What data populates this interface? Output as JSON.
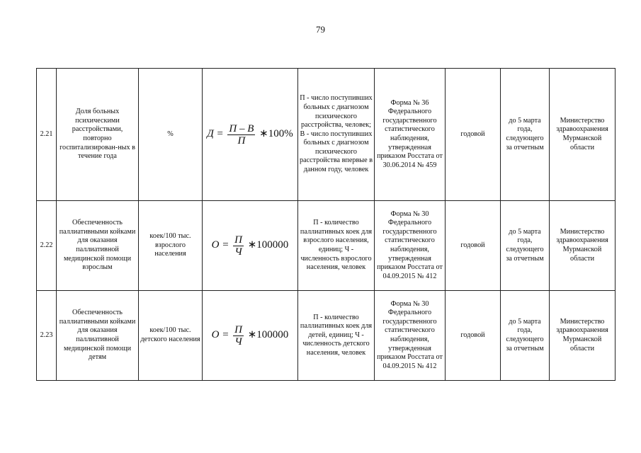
{
  "page_number": "79",
  "rows": [
    {
      "num": "2.21",
      "name": "Доля больных психическими расстройствами, повторно госпитализирован-ных в течение года",
      "unit": "%",
      "formula": {
        "lhs": "Д =",
        "numerator": "П – В",
        "denominator": "П",
        "tail": "∗100%"
      },
      "vars": "П - число поступивших больных с диагнозом психического расстройства, человек; В - число поступивших больных с диагнозом психического расстройства впервые в данном году, человек",
      "source": "Форма № 36 Федерального государственного статистического наблюдения, утвержденная приказом Росстата от 30.06.2014 № 459",
      "period": "годовой",
      "deadline": "до 5 марта года, следующего за отчетным",
      "responsible": "Министерство здравоохранения Мурманской области"
    },
    {
      "num": "2.22",
      "name": "Обеспеченность паллиативными койками для оказания паллиативной медицинской помощи взрослым",
      "unit": "коек/100 тыс. взрослого населения",
      "formula": {
        "lhs": "О =",
        "numerator": "П",
        "denominator": "Ч",
        "tail": "∗100000"
      },
      "vars": "П - количество паллиативных коек для взрослого населения, единиц; Ч - численность взрослого населения, человек",
      "source": "Форма № 30 Федерального государственного статистического наблюдения, утвержденная приказом Росстата от 04.09.2015 № 412",
      "period": "годовой",
      "deadline": "до 5 марта года, следующего за отчетным",
      "responsible": "Министерство здравоохранения Мурманской области"
    },
    {
      "num": "2.23",
      "name": "Обеспеченность паллиативными койками для оказания паллиативной медицинской помощи детям",
      "unit": "коек/100 тыс. детского населения",
      "formula": {
        "lhs": "О =",
        "numerator": "П",
        "denominator": "Ч",
        "tail": "∗100000"
      },
      "vars": "П - количество паллиативных коек для детей, единиц; Ч - численность детского населения, человек",
      "source": "Форма № 30 Федерального государственного статистического наблюдения, утвержденная приказом Росстата от 04.09.2015 № 412",
      "period": "годовой",
      "deadline": "до 5 марта года, следующего за отчетным",
      "responsible": "Министерство здравоохранения Мурманской области"
    }
  ]
}
